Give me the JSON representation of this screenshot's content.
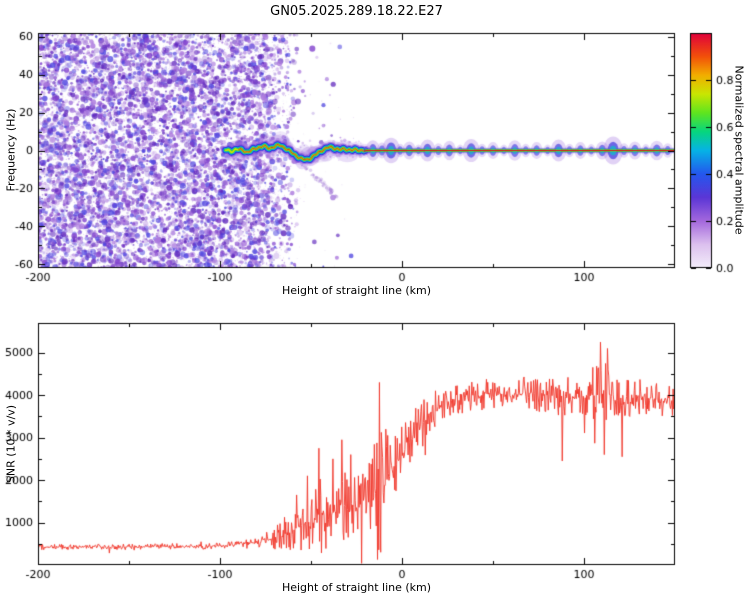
{
  "background": "#ffffff",
  "title": "GN05.2025.289.18.22.E27",
  "chart_data": [
    {
      "type": "heatmap",
      "role": "spectrogram",
      "title": "GN05.2025.289.18.22.E27",
      "xlabel": "Height of straight line (km)",
      "ylabel": "Frequency (Hz)",
      "xlim": [
        -200,
        150
      ],
      "ylim": [
        -62,
        62
      ],
      "xticks": [
        -200,
        -100,
        0,
        100
      ],
      "xticks_minor": [
        -150,
        -50,
        50
      ],
      "yticks": [
        -60,
        -40,
        -20,
        0,
        20,
        40,
        60
      ],
      "yticks_minor": [
        -50,
        -30,
        -10,
        10,
        30,
        50
      ],
      "grid": false,
      "colorbar": {
        "label": "Normalized spectral amplitude",
        "ticks": [
          "0.0",
          "0.2",
          "0.4",
          "0.6",
          "0.8"
        ],
        "tick_values": [
          0,
          0.2,
          0.4,
          0.6,
          0.8
        ],
        "range": [
          0,
          1
        ],
        "colormap": [
          [
            0.0,
            "#f4eefa"
          ],
          [
            0.1,
            "#dcc0ef"
          ],
          [
            0.2,
            "#a468dd"
          ],
          [
            0.3,
            "#5b36d6"
          ],
          [
            0.4,
            "#2457ee"
          ],
          [
            0.5,
            "#06b3e6"
          ],
          [
            0.58,
            "#06d67e"
          ],
          [
            0.66,
            "#5fe51f"
          ],
          [
            0.74,
            "#c9e602"
          ],
          [
            0.82,
            "#f2ae00"
          ],
          [
            0.9,
            "#f2500a"
          ],
          [
            1.0,
            "#e0003c"
          ]
        ]
      },
      "noise_field": {
        "x_dense_until": -78,
        "x_fade_to": -52,
        "x_sparse_tail_to": -26,
        "description": "diffuse purple speckle noise, uniform across all frequencies"
      },
      "signal_line": {
        "freq_hz": 0,
        "starts_at_km": -97,
        "wiggly_until_km": -20,
        "ends_at_km": 150,
        "path": [
          [
            -97,
            0.4
          ],
          [
            -94,
            -0.6
          ],
          [
            -91,
            0.8
          ],
          [
            -88,
            0.2
          ],
          [
            -85,
            -0.9
          ],
          [
            -82,
            0.4
          ],
          [
            -79,
            1.6
          ],
          [
            -76,
            2.4
          ],
          [
            -73,
            1.0
          ],
          [
            -70,
            2.2
          ],
          [
            -67,
            2.8
          ],
          [
            -64,
            1.2
          ],
          [
            -61,
            -0.8
          ],
          [
            -58,
            -2.8
          ],
          [
            -55,
            -4.6
          ],
          [
            -52,
            -4.9
          ],
          [
            -49,
            -3.2
          ],
          [
            -46,
            -1.2
          ],
          [
            -43,
            0.6
          ],
          [
            -40,
            1.8
          ],
          [
            -37,
            1.2
          ],
          [
            -34,
            0.4
          ],
          [
            -31,
            0.8
          ],
          [
            -28,
            0.2
          ],
          [
            -25,
            0.3
          ],
          [
            -22,
            0.1
          ],
          [
            -20,
            0
          ]
        ],
        "beads": [
          [
            -16,
            2.2,
            3.4,
            0.8
          ],
          [
            -11,
            1.6,
            2.6,
            0.6
          ],
          [
            -6,
            2.8,
            4.2,
            0.9
          ],
          [
            -1,
            1.4,
            2.2,
            0.5
          ],
          [
            4,
            2.0,
            3.0,
            0.7
          ],
          [
            9,
            1.2,
            2.0,
            0.4
          ],
          [
            14,
            2.4,
            3.6,
            0.8
          ],
          [
            20,
            1.5,
            2.4,
            0.5
          ],
          [
            26,
            2.0,
            3.2,
            0.7
          ],
          [
            32,
            1.2,
            2.0,
            0.4
          ],
          [
            38,
            2.6,
            3.8,
            0.8
          ],
          [
            44,
            1.4,
            2.2,
            0.5
          ],
          [
            50,
            1.8,
            2.8,
            0.6
          ],
          [
            56,
            1.2,
            2.0,
            0.4
          ],
          [
            62,
            2.2,
            3.4,
            0.7
          ],
          [
            68,
            1.4,
            2.2,
            0.5
          ],
          [
            74,
            1.8,
            2.8,
            0.6
          ],
          [
            80,
            1.2,
            2.0,
            0.4
          ],
          [
            86,
            2.4,
            3.6,
            0.8
          ],
          [
            92,
            1.4,
            2.2,
            0.5
          ],
          [
            98,
            1.8,
            2.8,
            0.6
          ],
          [
            104,
            1.3,
            2.1,
            0.4
          ],
          [
            110,
            2.0,
            3.0,
            0.7
          ],
          [
            116,
            3.0,
            4.6,
            0.95
          ],
          [
            122,
            1.5,
            2.4,
            0.5
          ],
          [
            128,
            2.0,
            3.0,
            0.6
          ],
          [
            134,
            1.3,
            2.1,
            0.4
          ],
          [
            140,
            2.2,
            3.2,
            0.7
          ],
          [
            146,
            1.5,
            2.4,
            0.5
          ]
        ],
        "streak": {
          "from": [
            -59,
            -4
          ],
          "to": [
            -36,
            -24
          ]
        }
      }
    },
    {
      "type": "line",
      "role": "snr",
      "xlabel": "Height of straight line (km)",
      "ylabel": "SNR (10 * v/v)",
      "xlim": [
        -200,
        150
      ],
      "ylim": [
        0,
        5700
      ],
      "xticks": [
        -200,
        -100,
        0,
        100
      ],
      "xticks_minor": [
        -150,
        -50,
        50
      ],
      "yticks": [
        1000,
        2000,
        3000,
        4000,
        5000
      ],
      "yticks_minor": [
        500,
        1500,
        2500,
        3500,
        4500
      ],
      "color": "#f03428",
      "envelope": [
        [
          -200,
          420,
          70
        ],
        [
          -150,
          430,
          70
        ],
        [
          -110,
          440,
          75
        ],
        [
          -100,
          450,
          80
        ],
        [
          -92,
          470,
          90
        ],
        [
          -85,
          500,
          110
        ],
        [
          -78,
          540,
          160
        ],
        [
          -72,
          600,
          260
        ],
        [
          -66,
          700,
          380
        ],
        [
          -60,
          820,
          520
        ],
        [
          -55,
          950,
          650
        ],
        [
          -50,
          1050,
          800
        ],
        [
          -45,
          1150,
          900
        ],
        [
          -40,
          1250,
          950
        ],
        [
          -35,
          1250,
          900
        ],
        [
          -30,
          1300,
          900
        ],
        [
          -25,
          1350,
          950
        ],
        [
          -20,
          1450,
          1100
        ],
        [
          -16,
          1550,
          1400
        ],
        [
          -13,
          1650,
          1800
        ],
        [
          -10,
          1850,
          1300
        ],
        [
          -6,
          2150,
          1000
        ],
        [
          -2,
          2450,
          800
        ],
        [
          2,
          2750,
          700
        ],
        [
          6,
          3000,
          650
        ],
        [
          10,
          3250,
          550
        ],
        [
          15,
          3550,
          500
        ],
        [
          20,
          3750,
          450
        ],
        [
          25,
          3850,
          420
        ],
        [
          30,
          3950,
          400
        ],
        [
          40,
          4000,
          380
        ],
        [
          50,
          4050,
          380
        ],
        [
          60,
          4000,
          380
        ],
        [
          70,
          4050,
          400
        ],
        [
          80,
          4000,
          420
        ],
        [
          90,
          3950,
          480
        ],
        [
          100,
          3950,
          450
        ],
        [
          107,
          4000,
          650
        ],
        [
          112,
          4050,
          750
        ],
        [
          116,
          4000,
          600
        ],
        [
          122,
          3950,
          480
        ],
        [
          130,
          3950,
          430
        ],
        [
          140,
          3900,
          400
        ],
        [
          150,
          3850,
          380
        ]
      ],
      "spikes": [
        [
          -58,
          1650
        ],
        [
          -52,
          2100
        ],
        [
          -45.5,
          2750
        ],
        [
          -41,
          900
        ],
        [
          -38,
          2500
        ],
        [
          -33,
          2950
        ],
        [
          -28,
          2600
        ],
        [
          -24,
          2100
        ],
        [
          -18,
          2400
        ],
        [
          -13.5,
          130
        ],
        [
          -12.5,
          4300
        ],
        [
          -11.8,
          300
        ],
        [
          -9,
          3200
        ],
        [
          88,
          2450
        ],
        [
          109,
          5250
        ],
        [
          111,
          2600
        ],
        [
          113,
          5100
        ],
        [
          121,
          2550
        ]
      ]
    }
  ]
}
